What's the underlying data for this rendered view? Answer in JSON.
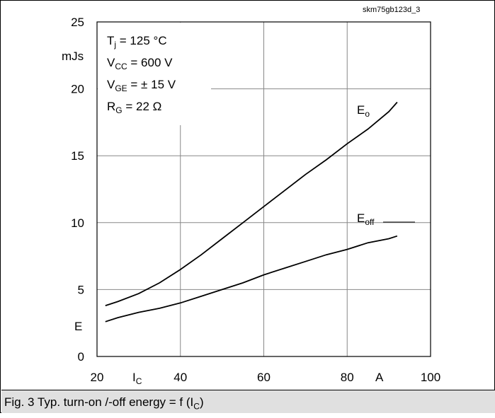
{
  "figure_id": "skm75gb123d_3",
  "caption": {
    "prefix": "Fig. 3 Typ. turn-on /-off energy = f (I",
    "sub": "C",
    "suffix": ")"
  },
  "conditions": [
    {
      "main": "T",
      "sub": "j",
      "rest": " = 125 °C"
    },
    {
      "main": "V",
      "sub": "CC",
      "rest": " = 600 V"
    },
    {
      "main": "V",
      "sub": "GE",
      "rest": " = ± 15 V"
    },
    {
      "main": "R",
      "sub": "G",
      "rest": " = 22 Ω"
    }
  ],
  "chart_data": {
    "type": "line",
    "x_axis": {
      "label": "I",
      "label_sub": "C",
      "unit": "A",
      "range": [
        20,
        100
      ],
      "ticks": [
        20,
        40,
        60,
        80,
        100
      ]
    },
    "y_axis": {
      "label": "E",
      "unit": "mJs",
      "range": [
        0,
        25
      ],
      "ticks": [
        0,
        5,
        10,
        15,
        20,
        25
      ]
    },
    "grid": true,
    "series": [
      {
        "name": "E",
        "name_sub": "o",
        "x": [
          22,
          25,
          30,
          35,
          40,
          45,
          50,
          55,
          60,
          65,
          70,
          75,
          80,
          85,
          90,
          92
        ],
        "y": [
          3.8,
          4.1,
          4.7,
          5.5,
          6.5,
          7.6,
          8.8,
          10.0,
          11.2,
          12.4,
          13.6,
          14.7,
          15.9,
          17.0,
          18.3,
          19.0
        ]
      },
      {
        "name": "E",
        "name_sub": "off",
        "x": [
          22,
          25,
          30,
          35,
          40,
          45,
          50,
          55,
          60,
          65,
          70,
          75,
          80,
          85,
          90,
          92
        ],
        "y": [
          2.6,
          2.9,
          3.3,
          3.6,
          4.0,
          4.5,
          5.0,
          5.5,
          6.1,
          6.6,
          7.1,
          7.6,
          8.0,
          8.5,
          8.8,
          9.0
        ]
      }
    ]
  }
}
